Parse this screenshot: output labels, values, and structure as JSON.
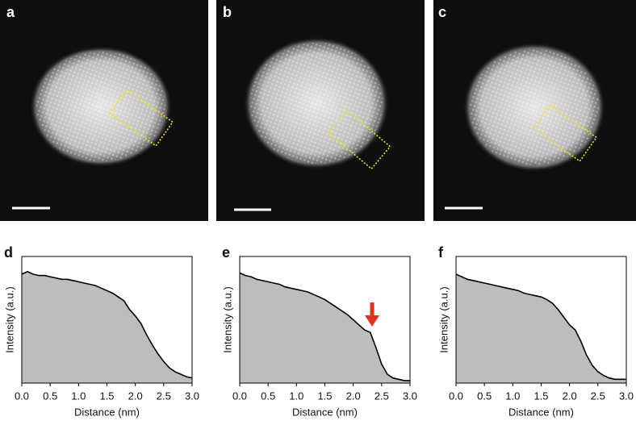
{
  "images": [
    {
      "label": "a"
    },
    {
      "label": "b"
    },
    {
      "label": "c"
    }
  ],
  "chart_data": [
    {
      "type": "area",
      "panel_label": "d",
      "xlabel": "Distance (nm)",
      "ylabel": "Intensity (a.u.)",
      "color": "#bdbdbd",
      "line_color": "#000000",
      "x": [
        0,
        0.1,
        0.2,
        0.3,
        0.4,
        0.5,
        0.6,
        0.7,
        0.8,
        0.9,
        1.0,
        1.1,
        1.2,
        1.3,
        1.4,
        1.5,
        1.6,
        1.7,
        1.8,
        1.9,
        2.0,
        2.1,
        2.2,
        2.3,
        2.4,
        2.5,
        2.6,
        2.7,
        2.8,
        2.9,
        3.0
      ],
      "values": [
        0.86,
        0.88,
        0.86,
        0.85,
        0.85,
        0.84,
        0.83,
        0.82,
        0.82,
        0.81,
        0.8,
        0.79,
        0.78,
        0.77,
        0.75,
        0.73,
        0.71,
        0.68,
        0.65,
        0.58,
        0.53,
        0.47,
        0.38,
        0.3,
        0.23,
        0.17,
        0.12,
        0.09,
        0.07,
        0.05,
        0.04
      ],
      "xlim": [
        0,
        3
      ],
      "ylim": [
        0,
        1
      ],
      "xticks": [
        {
          "value": 0,
          "label": "0.0"
        },
        0.5,
        {
          "value": 1,
          "label": "1.0"
        },
        1.5,
        {
          "value": 2,
          "label": "2.0"
        },
        2.5,
        {
          "value": 3,
          "label": "3.0"
        }
      ]
    },
    {
      "type": "area",
      "panel_label": "e",
      "xlabel": "Distance (nm)",
      "ylabel": "Intensity (a.u.)",
      "color": "#bdbdbd",
      "line_color": "#000000",
      "x": [
        0,
        0.1,
        0.2,
        0.3,
        0.4,
        0.5,
        0.6,
        0.7,
        0.8,
        0.9,
        1.0,
        1.1,
        1.2,
        1.3,
        1.4,
        1.5,
        1.6,
        1.7,
        1.8,
        1.9,
        2.0,
        2.1,
        2.2,
        2.3,
        2.4,
        2.5,
        2.6,
        2.7,
        2.8,
        2.9,
        3.0
      ],
      "values": [
        0.87,
        0.85,
        0.84,
        0.82,
        0.81,
        0.8,
        0.79,
        0.78,
        0.76,
        0.75,
        0.74,
        0.73,
        0.72,
        0.7,
        0.68,
        0.66,
        0.63,
        0.6,
        0.57,
        0.54,
        0.5,
        0.46,
        0.42,
        0.4,
        0.28,
        0.15,
        0.07,
        0.04,
        0.03,
        0.02,
        0.02
      ],
      "xlim": [
        0,
        3
      ],
      "ylim": [
        0,
        1
      ],
      "xticks": [
        {
          "value": 0,
          "label": "0.0"
        },
        0.5,
        {
          "value": 1,
          "label": "1.0"
        },
        1.5,
        {
          "value": 2,
          "label": "2.0"
        },
        2.5,
        {
          "value": 3,
          "label": "3.0"
        }
      ]
    },
    {
      "type": "area",
      "panel_label": "f",
      "xlabel": "Distance (nm)",
      "ylabel": "Intensity (a.u.)",
      "color": "#bdbdbd",
      "line_color": "#000000",
      "x": [
        0,
        0.1,
        0.2,
        0.3,
        0.4,
        0.5,
        0.6,
        0.7,
        0.8,
        0.9,
        1.0,
        1.1,
        1.2,
        1.3,
        1.4,
        1.5,
        1.6,
        1.7,
        1.8,
        1.9,
        2.0,
        2.1,
        2.2,
        2.3,
        2.4,
        2.5,
        2.6,
        2.7,
        2.8,
        2.9,
        3.0
      ],
      "values": [
        0.86,
        0.84,
        0.82,
        0.81,
        0.8,
        0.79,
        0.78,
        0.77,
        0.76,
        0.75,
        0.74,
        0.73,
        0.71,
        0.7,
        0.69,
        0.68,
        0.66,
        0.63,
        0.58,
        0.52,
        0.46,
        0.42,
        0.33,
        0.22,
        0.14,
        0.09,
        0.06,
        0.04,
        0.03,
        0.03,
        0.03
      ],
      "xlim": [
        0,
        3
      ],
      "ylim": [
        0,
        1
      ],
      "xticks": [
        {
          "value": 0,
          "label": "0.0"
        },
        0.5,
        {
          "value": 1,
          "label": "1.0"
        },
        1.5,
        {
          "value": 2,
          "label": "2.0"
        },
        2.5,
        {
          "value": 3,
          "label": "3.0"
        }
      ]
    }
  ]
}
